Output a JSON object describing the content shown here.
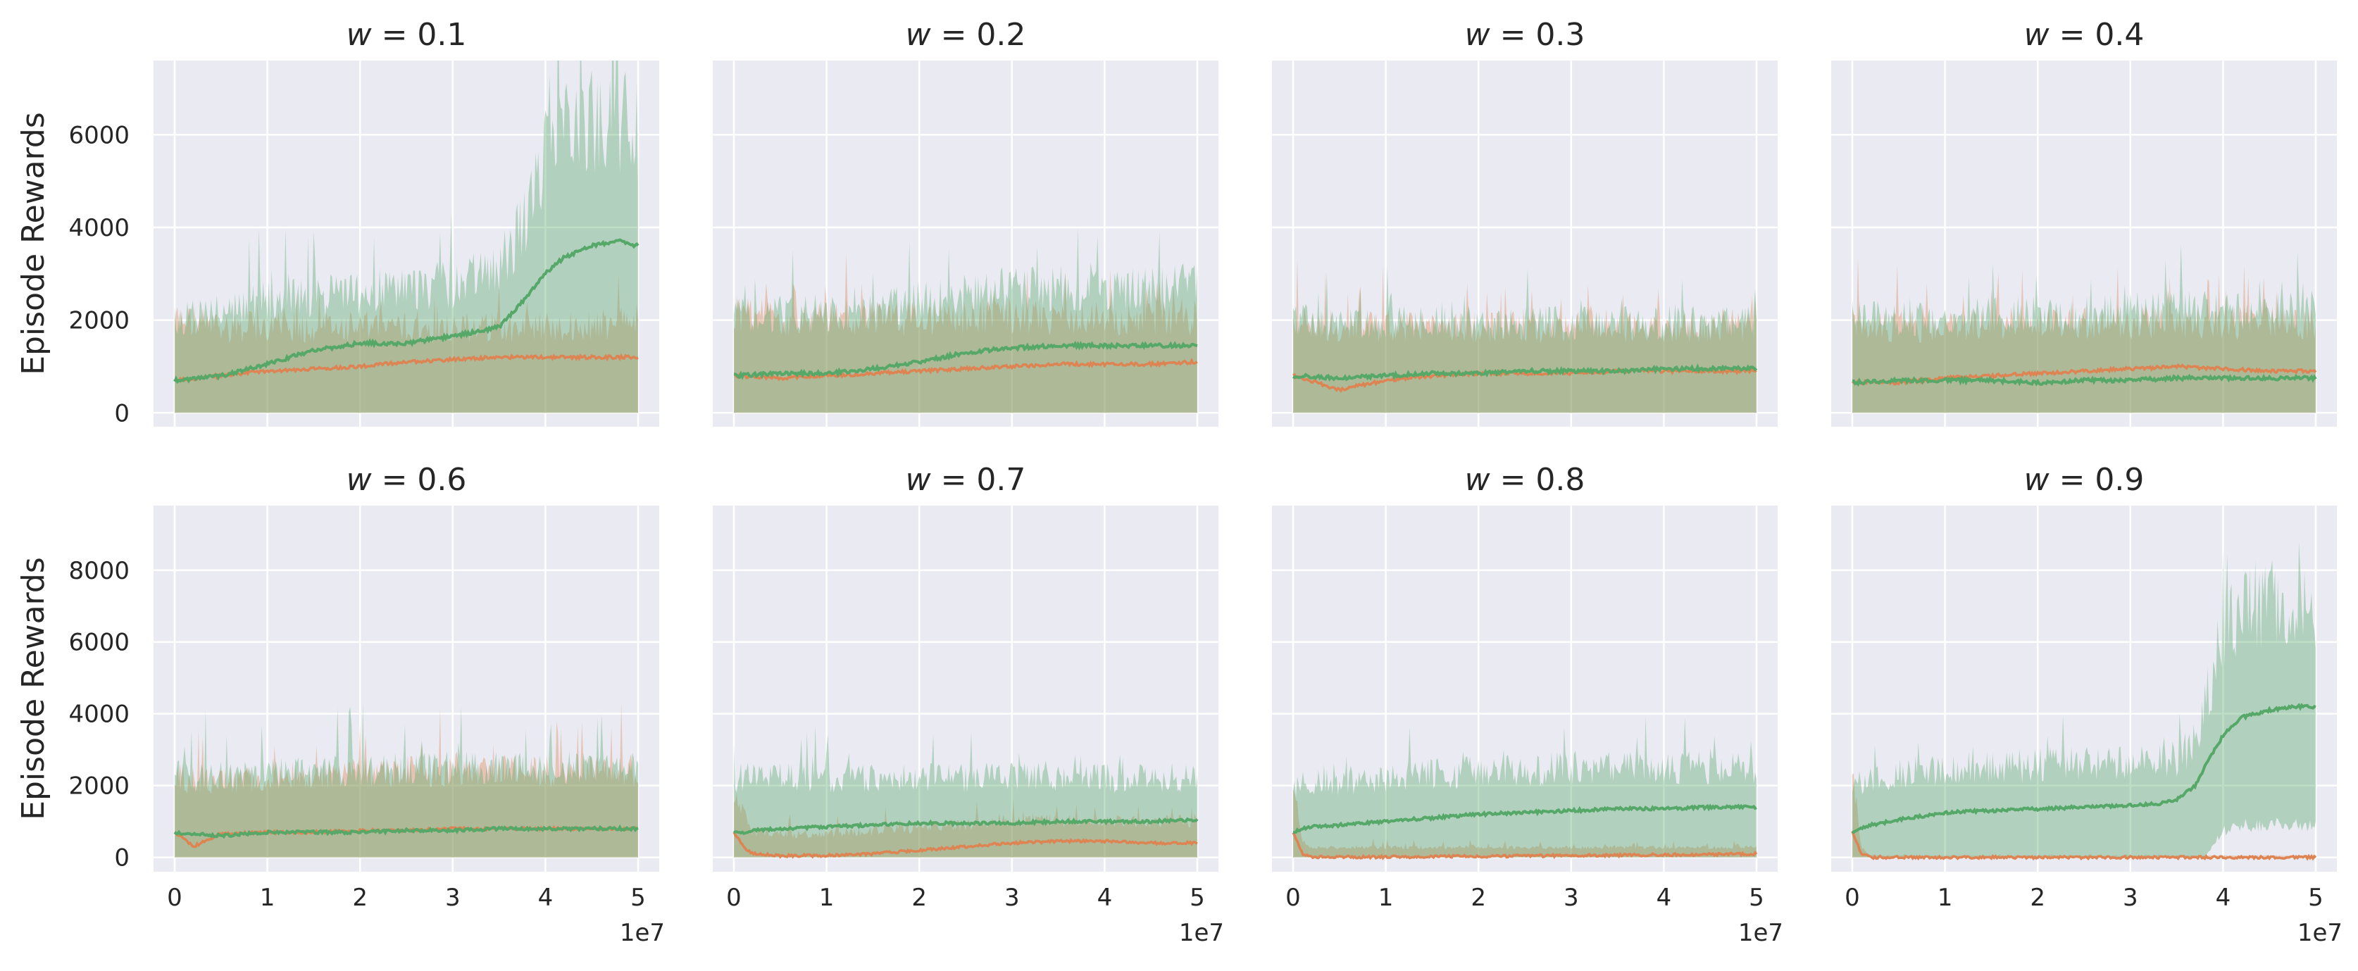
{
  "chart_data": {
    "type": "line",
    "layout": "grid 2x4, shared x per column, shared y per row",
    "grid": true,
    "x_ticks": [
      "0",
      "1",
      "2",
      "3",
      "4",
      "5"
    ],
    "x_offset_label": "1e7",
    "x_range": [
      0,
      50000000
    ],
    "rows": [
      {
        "ylabel": "Episode Rewards",
        "y_ticks": [
          0,
          2000,
          4000,
          6000
        ],
        "ylim": [
          -300,
          7600
        ]
      },
      {
        "ylabel": "Episode Rewards",
        "y_ticks": [
          0,
          2000,
          4000,
          6000,
          8000
        ],
        "ylim": [
          -400,
          9800
        ]
      }
    ],
    "colors": {
      "green": "#55a868",
      "orange": "#dd8452",
      "green_band": "#55a868",
      "orange_band": "#dd8452",
      "panel_bg": "#eaeaf2",
      "grid": "#ffffff"
    },
    "panels": [
      {
        "title_var": "w",
        "title_val": " = 0.1",
        "row": 0,
        "col": 0,
        "x_k": [
          0,
          5,
          10,
          15,
          20,
          25,
          30,
          35,
          38,
          40,
          42,
          45,
          48,
          50
        ],
        "green_mean": [
          700,
          800,
          1050,
          1350,
          1500,
          1500,
          1650,
          1850,
          2500,
          3000,
          3350,
          3600,
          3700,
          3600
        ],
        "green_band": [
          [
            0,
            2200
          ],
          [
            0,
            2400
          ],
          [
            0,
            2600
          ],
          [
            0,
            2700
          ],
          [
            0,
            2800
          ],
          [
            0,
            2900
          ],
          [
            0,
            3000
          ],
          [
            0,
            3400
          ],
          [
            0,
            4500
          ],
          [
            0,
            5800
          ],
          [
            0,
            6500
          ],
          [
            0,
            6800
          ],
          [
            0,
            6800
          ],
          [
            0,
            6500
          ]
        ],
        "orange_mean": [
          700,
          800,
          900,
          950,
          1000,
          1100,
          1150,
          1200,
          1200,
          1200,
          1200,
          1200,
          1200,
          1200
        ],
        "orange_band": [
          [
            0,
            2200
          ],
          [
            0,
            2000
          ],
          [
            0,
            2000
          ],
          [
            0,
            2000
          ],
          [
            0,
            2000
          ],
          [
            0,
            2000
          ],
          [
            0,
            2000
          ],
          [
            0,
            2000
          ],
          [
            0,
            2000
          ],
          [
            0,
            2000
          ],
          [
            0,
            2000
          ],
          [
            0,
            2000
          ],
          [
            0,
            2100
          ],
          [
            0,
            2200
          ]
        ]
      },
      {
        "title_var": "w",
        "title_val": " = 0.2",
        "row": 0,
        "col": 1,
        "x_k": [
          0,
          5,
          10,
          15,
          20,
          25,
          30,
          35,
          40,
          45,
          50
        ],
        "green_mean": [
          800,
          850,
          850,
          950,
          1100,
          1300,
          1400,
          1450,
          1450,
          1450,
          1450
        ],
        "green_band": [
          [
            0,
            2300
          ],
          [
            0,
            2300
          ],
          [
            0,
            2300
          ],
          [
            0,
            2400
          ],
          [
            0,
            2600
          ],
          [
            0,
            2800
          ],
          [
            0,
            2900
          ],
          [
            0,
            2900
          ],
          [
            0,
            2900
          ],
          [
            0,
            2900
          ],
          [
            0,
            2900
          ]
        ],
        "orange_mean": [
          800,
          750,
          800,
          850,
          900,
          950,
          1000,
          1050,
          1050,
          1050,
          1100
        ],
        "orange_band": [
          [
            0,
            2300
          ],
          [
            0,
            2200
          ],
          [
            0,
            2200
          ],
          [
            0,
            2200
          ],
          [
            0,
            2200
          ],
          [
            0,
            2200
          ],
          [
            0,
            2200
          ],
          [
            0,
            2200
          ],
          [
            0,
            2200
          ],
          [
            0,
            2200
          ],
          [
            0,
            2200
          ]
        ]
      },
      {
        "title_var": "w",
        "title_val": " = 0.3",
        "row": 0,
        "col": 2,
        "x_k": [
          0,
          5,
          10,
          15,
          20,
          25,
          30,
          35,
          40,
          45,
          50
        ],
        "green_mean": [
          800,
          750,
          800,
          850,
          850,
          900,
          900,
          900,
          950,
          950,
          950
        ],
        "green_band": [
          [
            0,
            2200
          ],
          [
            0,
            2100
          ],
          [
            0,
            2100
          ],
          [
            0,
            2100
          ],
          [
            0,
            2100
          ],
          [
            0,
            2100
          ],
          [
            0,
            2100
          ],
          [
            0,
            2100
          ],
          [
            0,
            2100
          ],
          [
            0,
            2100
          ],
          [
            0,
            2100
          ]
        ],
        "orange_mean": [
          800,
          500,
          700,
          800,
          850,
          850,
          850,
          900,
          900,
          900,
          900
        ],
        "orange_band": [
          [
            0,
            2200
          ],
          [
            0,
            2000
          ],
          [
            0,
            2000
          ],
          [
            0,
            2000
          ],
          [
            0,
            2000
          ],
          [
            0,
            2000
          ],
          [
            0,
            2000
          ],
          [
            0,
            2000
          ],
          [
            0,
            2000
          ],
          [
            0,
            2000
          ],
          [
            0,
            2000
          ]
        ]
      },
      {
        "title_var": "w",
        "title_val": " = 0.4",
        "row": 0,
        "col": 3,
        "x_k": [
          0,
          5,
          10,
          15,
          20,
          25,
          30,
          35,
          40,
          45,
          50
        ],
        "green_mean": [
          650,
          700,
          700,
          700,
          650,
          700,
          700,
          750,
          750,
          750,
          750
        ],
        "green_band": [
          [
            0,
            2200
          ],
          [
            0,
            2200
          ],
          [
            0,
            2200
          ],
          [
            0,
            2300
          ],
          [
            0,
            2300
          ],
          [
            0,
            2300
          ],
          [
            0,
            2400
          ],
          [
            0,
            2400
          ],
          [
            0,
            2400
          ],
          [
            0,
            2400
          ],
          [
            0,
            2400
          ]
        ],
        "orange_mean": [
          650,
          650,
          750,
          800,
          850,
          900,
          950,
          1000,
          950,
          900,
          900
        ],
        "orange_band": [
          [
            0,
            2100
          ],
          [
            0,
            2000
          ],
          [
            0,
            2000
          ],
          [
            0,
            2100
          ],
          [
            0,
            2100
          ],
          [
            0,
            2100
          ],
          [
            0,
            2100
          ],
          [
            0,
            2100
          ],
          [
            0,
            2100
          ],
          [
            0,
            2100
          ],
          [
            0,
            2100
          ]
        ]
      },
      {
        "title_var": "w",
        "title_val": " = 0.6",
        "row": 1,
        "col": 0,
        "x_k": [
          0,
          2,
          5,
          10,
          15,
          20,
          25,
          30,
          35,
          40,
          45,
          50
        ],
        "green_mean": [
          700,
          650,
          600,
          700,
          700,
          700,
          750,
          750,
          800,
          800,
          800,
          800
        ],
        "green_band": [
          [
            0,
            2500
          ],
          [
            0,
            2400
          ],
          [
            0,
            2400
          ],
          [
            0,
            2500
          ],
          [
            0,
            2600
          ],
          [
            0,
            2600
          ],
          [
            0,
            2700
          ],
          [
            0,
            2700
          ],
          [
            0,
            2700
          ],
          [
            0,
            2700
          ],
          [
            0,
            2700
          ],
          [
            0,
            2700
          ]
        ],
        "orange_mean": [
          700,
          300,
          650,
          700,
          700,
          750,
          750,
          800,
          800,
          800,
          800,
          800
        ],
        "orange_band": [
          [
            0,
            2500
          ],
          [
            0,
            2300
          ],
          [
            0,
            2300
          ],
          [
            0,
            2400
          ],
          [
            0,
            2500
          ],
          [
            0,
            2500
          ],
          [
            0,
            2600
          ],
          [
            0,
            2600
          ],
          [
            0,
            2600
          ],
          [
            0,
            2600
          ],
          [
            0,
            2600
          ],
          [
            0,
            2600
          ]
        ]
      },
      {
        "title_var": "w",
        "title_val": " = 0.7",
        "row": 1,
        "col": 1,
        "x_k": [
          0,
          1,
          2,
          5,
          10,
          15,
          20,
          25,
          30,
          35,
          40,
          45,
          50
        ],
        "green_mean": [
          700,
          700,
          750,
          800,
          850,
          900,
          950,
          950,
          950,
          1000,
          1000,
          1000,
          1050
        ],
        "green_band": [
          [
            0,
            2400
          ],
          [
            0,
            2400
          ],
          [
            0,
            2400
          ],
          [
            0,
            2400
          ],
          [
            0,
            2400
          ],
          [
            0,
            2400
          ],
          [
            0,
            2400
          ],
          [
            0,
            2400
          ],
          [
            0,
            2400
          ],
          [
            0,
            2400
          ],
          [
            0,
            2400
          ],
          [
            0,
            2400
          ],
          [
            0,
            2400
          ]
        ],
        "orange_mean": [
          700,
          300,
          100,
          50,
          50,
          100,
          200,
          300,
          400,
          450,
          450,
          400,
          400
        ],
        "orange_band": [
          [
            0,
            2000
          ],
          [
            0,
            1500
          ],
          [
            0,
            800
          ],
          [
            0,
            700
          ],
          [
            0,
            700
          ],
          [
            0,
            800
          ],
          [
            0,
            900
          ],
          [
            0,
            1000
          ],
          [
            0,
            1100
          ],
          [
            0,
            1100
          ],
          [
            0,
            1100
          ],
          [
            0,
            1100
          ],
          [
            0,
            1100
          ]
        ]
      },
      {
        "title_var": "w",
        "title_val": " = 0.8",
        "row": 1,
        "col": 2,
        "x_k": [
          0,
          1,
          2,
          5,
          10,
          15,
          20,
          25,
          30,
          35,
          40,
          45,
          50
        ],
        "green_mean": [
          700,
          800,
          850,
          900,
          1000,
          1100,
          1200,
          1250,
          1300,
          1350,
          1350,
          1400,
          1400
        ],
        "green_band": [
          [
            0,
            2200
          ],
          [
            0,
            2200
          ],
          [
            0,
            2200
          ],
          [
            0,
            2300
          ],
          [
            0,
            2400
          ],
          [
            0,
            2500
          ],
          [
            0,
            2600
          ],
          [
            0,
            2600
          ],
          [
            0,
            2700
          ],
          [
            0,
            2700
          ],
          [
            0,
            2700
          ],
          [
            0,
            2700
          ],
          [
            0,
            2700
          ]
        ],
        "orange_mean": [
          700,
          100,
          10,
          10,
          10,
          20,
          30,
          40,
          50,
          60,
          70,
          80,
          100
        ],
        "orange_band": [
          [
            0,
            2000
          ],
          [
            0,
            500
          ],
          [
            0,
            300
          ],
          [
            0,
            300
          ],
          [
            0,
            300
          ],
          [
            0,
            300
          ],
          [
            0,
            300
          ],
          [
            0,
            300
          ],
          [
            0,
            300
          ],
          [
            0,
            300
          ],
          [
            0,
            300
          ],
          [
            0,
            300
          ],
          [
            0,
            300
          ]
        ]
      },
      {
        "title_var": "w",
        "title_val": " = 0.9",
        "row": 1,
        "col": 3,
        "x_k": [
          0,
          1,
          2,
          5,
          10,
          15,
          20,
          25,
          30,
          33,
          35,
          37,
          38,
          40,
          42,
          45,
          48,
          50
        ],
        "green_mean": [
          700,
          800,
          900,
          1050,
          1250,
          1300,
          1350,
          1400,
          1450,
          1500,
          1600,
          2000,
          2500,
          3400,
          3900,
          4100,
          4200,
          4200
        ],
        "green_band": [
          [
            0,
            2200
          ],
          [
            0,
            2200
          ],
          [
            0,
            2300
          ],
          [
            0,
            2500
          ],
          [
            0,
            2700
          ],
          [
            0,
            2700
          ],
          [
            0,
            2800
          ],
          [
            0,
            2800
          ],
          [
            0,
            2900
          ],
          [
            0,
            2900
          ],
          [
            0,
            3000
          ],
          [
            0,
            3400
          ],
          [
            0,
            4500
          ],
          [
            800,
            6800
          ],
          [
            1000,
            7500
          ],
          [
            1000,
            7800
          ],
          [
            1000,
            7600
          ],
          [
            1000,
            7500
          ]
        ],
        "orange_mean": [
          700,
          100,
          0,
          0,
          0,
          0,
          0,
          0,
          0,
          0,
          0,
          0,
          0,
          0,
          0,
          0,
          0,
          0
        ],
        "orange_band": [
          [
            0,
            2500
          ],
          [
            0,
            300
          ],
          [
            0,
            50
          ],
          [
            0,
            50
          ],
          [
            0,
            50
          ],
          [
            0,
            50
          ],
          [
            0,
            50
          ],
          [
            0,
            50
          ],
          [
            0,
            50
          ],
          [
            0,
            50
          ],
          [
            0,
            50
          ],
          [
            0,
            50
          ],
          [
            0,
            50
          ],
          [
            0,
            50
          ],
          [
            0,
            50
          ],
          [
            0,
            50
          ],
          [
            0,
            50
          ],
          [
            0,
            50
          ]
        ]
      }
    ]
  }
}
